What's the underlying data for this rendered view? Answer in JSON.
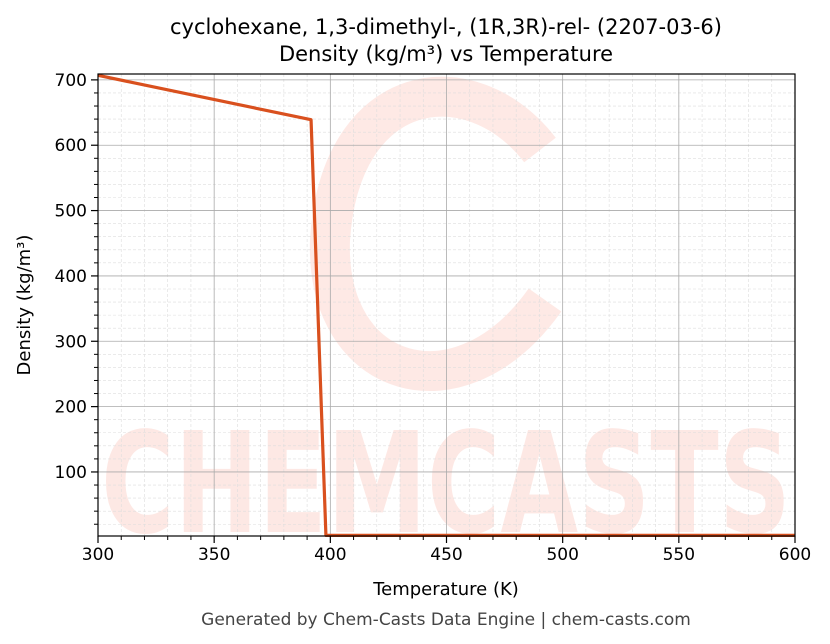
{
  "chart_data": {
    "type": "line",
    "title": "cyclohexane, 1,3-dimethyl-, (1R,3R)-rel- (2207-03-6)",
    "subtitle": "Density (kg/m³) vs Temperature",
    "xlabel": "Temperature (K)",
    "ylabel": "Density (kg/m³)",
    "xlim": [
      300,
      600
    ],
    "ylim": [
      2,
      709
    ],
    "xticks": [
      300,
      350,
      400,
      450,
      500,
      550,
      600
    ],
    "yticks": [
      100,
      200,
      300,
      400,
      500,
      600,
      700
    ],
    "grid": true,
    "series": [
      {
        "color": "#d9501e",
        "x": [
          300,
          391.7,
          398.1,
          600
        ],
        "y": [
          707,
          639,
          3,
          3
        ]
      }
    ]
  },
  "watermark": "CHEMCASTS",
  "footer": "Generated by Chem-Casts Data Engine | chem-casts.com"
}
